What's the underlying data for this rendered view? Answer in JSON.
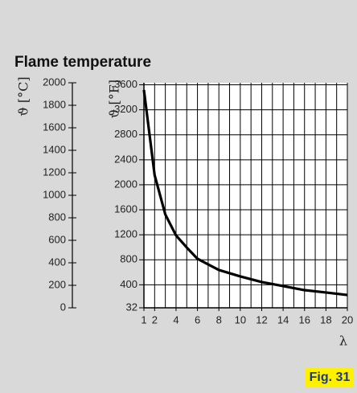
{
  "chart_data": {
    "type": "line",
    "title": "Flame temperature",
    "ylabel": "ϑ [°C]",
    "y2label": "ϑ [°F]",
    "xlabel": "λ",
    "annotation": "Fig. 31",
    "x": [
      1,
      2,
      3,
      4,
      5,
      6,
      8,
      10,
      12,
      14,
      16,
      18,
      20
    ],
    "series": [
      {
        "color": "#000000",
        "values": [
          1936,
          1179,
          829,
          643,
          536,
          436,
          336,
          279,
          229,
          193,
          157,
          136,
          114
        ]
      }
    ],
    "xlim": [
      1,
      20
    ],
    "xticks": [
      1,
      2,
      4,
      6,
      8,
      10,
      12,
      14,
      16,
      18,
      20
    ],
    "x_grid_step": 1,
    "ylim": [
      0,
      2000
    ],
    "yticks": [
      0,
      200,
      400,
      600,
      800,
      1000,
      1200,
      1400,
      1600,
      1800,
      2000
    ],
    "y2lim": [
      32,
      3632
    ],
    "y2ticks": [
      32,
      400,
      800,
      1200,
      1600,
      2000,
      2400,
      2800,
      3200,
      3600
    ],
    "grid": true
  }
}
